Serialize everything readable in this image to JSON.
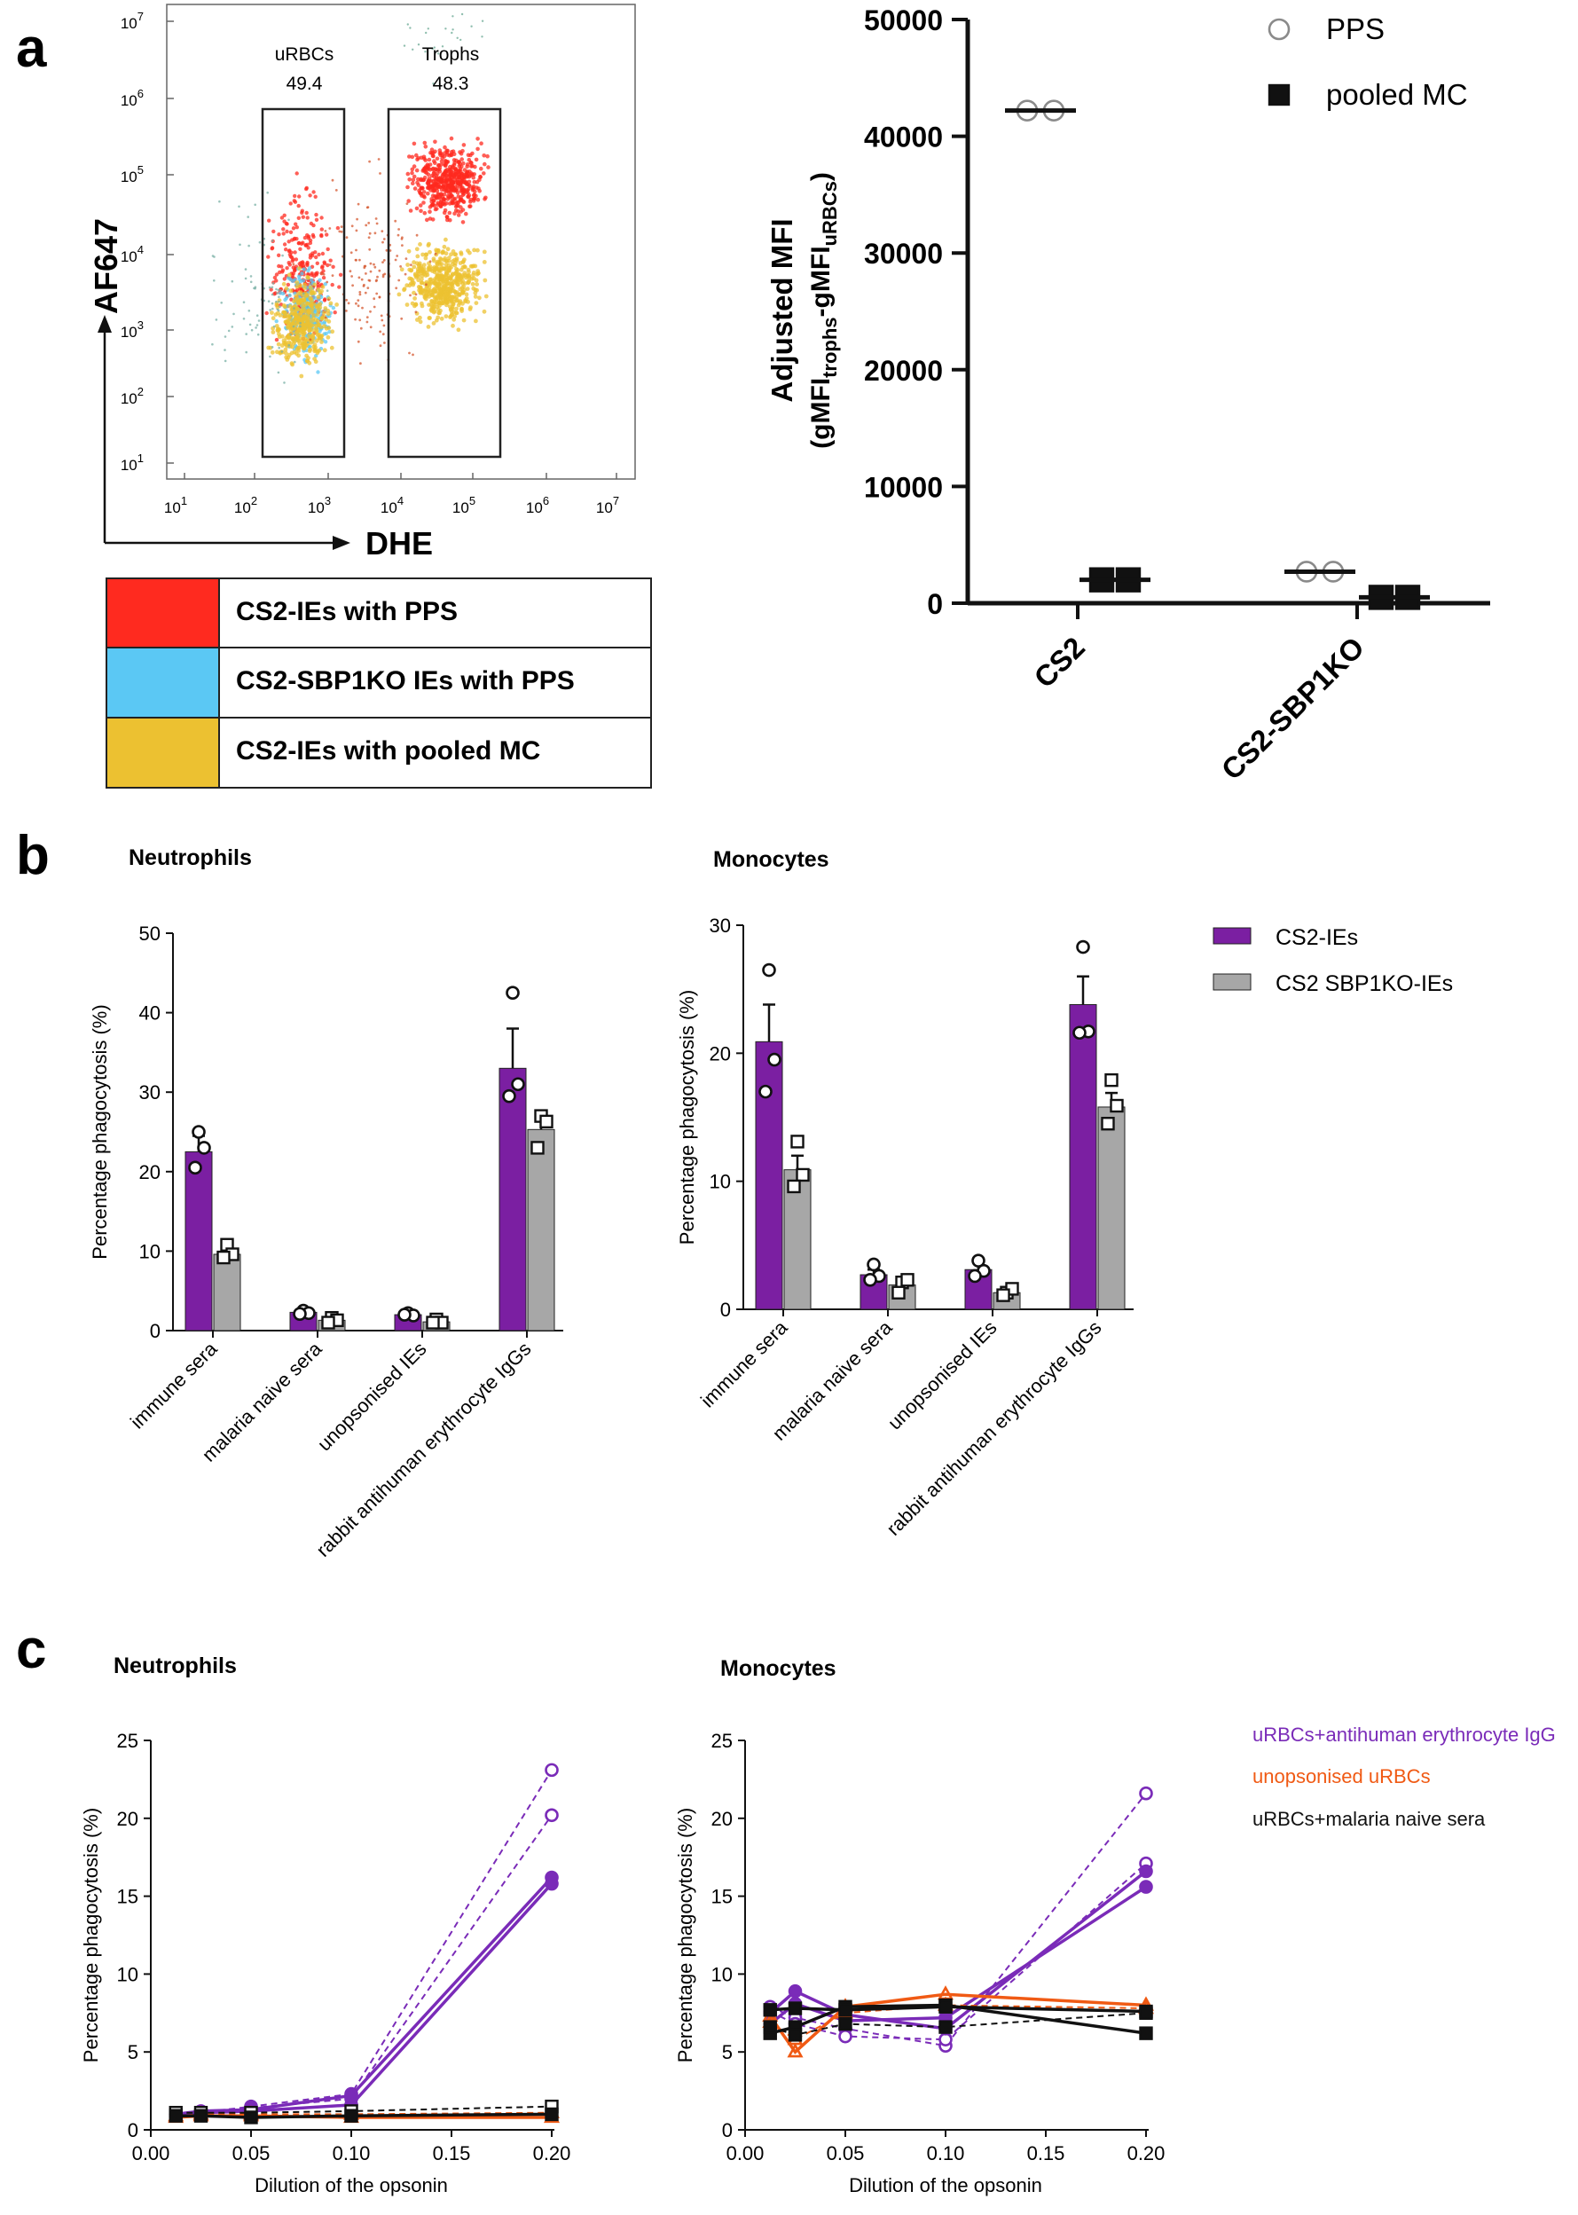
{
  "panel_labels": {
    "a": "a",
    "b": "b",
    "c": "c"
  },
  "flow": {
    "yaxis_label": "AF647",
    "xaxis_label": "DHE",
    "y_ticks": [
      {
        "base": "10",
        "exp": "1"
      },
      {
        "base": "10",
        "exp": "2"
      },
      {
        "base": "10",
        "exp": "3"
      },
      {
        "base": "10",
        "exp": "4"
      },
      {
        "base": "10",
        "exp": "5"
      },
      {
        "base": "10",
        "exp": "6"
      },
      {
        "base": "10",
        "exp": "7"
      }
    ],
    "x_ticks": [
      {
        "base": "10",
        "exp": "1"
      },
      {
        "base": "10",
        "exp": "2"
      },
      {
        "base": "10",
        "exp": "3"
      },
      {
        "base": "10",
        "exp": "4"
      },
      {
        "base": "10",
        "exp": "5"
      },
      {
        "base": "10",
        "exp": "6"
      },
      {
        "base": "10",
        "exp": "7"
      }
    ],
    "gates": [
      {
        "name": "uRBCs",
        "value": "49.4"
      },
      {
        "name": "Trophs",
        "value": "48.3"
      }
    ],
    "legend": [
      {
        "label": "CS2-IEs with PPS",
        "color": "#ff2a1f"
      },
      {
        "label": "CS2-SBP1KO IEs with PPS",
        "color": "#5bc8f4"
      },
      {
        "label": "CS2-IEs with pooled MC",
        "color": "#ecc131"
      }
    ]
  },
  "chart_data": [
    {
      "id": "a-mfi",
      "type": "scatter",
      "title": "",
      "ylabel": "Adjusted MFI",
      "ylabel2_parts": [
        "(gMFI",
        "trophs",
        "-gMFI",
        "uRBCs",
        ")"
      ],
      "ylim": [
        0,
        50000
      ],
      "yticks": [
        0,
        10000,
        20000,
        30000,
        40000,
        50000
      ],
      "categories": [
        "CS2",
        "CS2-SBP1KO"
      ],
      "series": [
        {
          "name": "PPS",
          "marker": "open-circle",
          "points": [
            [
              42200,
              42200
            ],
            [
              2700,
              2700
            ]
          ],
          "means": [
            42200,
            2700
          ]
        },
        {
          "name": "pooled MC",
          "marker": "filled-square",
          "points": [
            [
              2000,
              2000
            ],
            [
              500,
              500
            ]
          ],
          "means": [
            2000,
            500
          ]
        }
      ]
    },
    {
      "id": "b-neutrophils",
      "type": "bar",
      "title": "Neutrophils",
      "ylabel": "Percentage phagocytosis (%)",
      "ylim": [
        0,
        50
      ],
      "yticks": [
        0,
        10,
        20,
        30,
        40,
        50
      ],
      "categories": [
        "immune sera",
        "malaria naive sera",
        "unopsonised IEs",
        "rabbit antihuman erythrocyte IgGs"
      ],
      "series": [
        {
          "name": "CS2-IEs",
          "color": "#7b1fa2",
          "marker": "circle",
          "values": [
            22.5,
            2.3,
            2.0,
            33.0
          ],
          "sem": [
            2.0,
            0.3,
            0.3,
            5.0
          ],
          "points": [
            [
              25.0,
              23.0,
              20.5
            ],
            [
              2.5,
              2.2,
              2.1
            ],
            [
              2.2,
              1.9,
              2.0
            ],
            [
              42.5,
              31.0,
              29.5
            ]
          ]
        },
        {
          "name": "CS2 SBP1KO-IEs",
          "color": "#a7a7a7",
          "marker": "square",
          "values": [
            9.6,
            1.3,
            1.1,
            25.3
          ],
          "sem": [
            0.8,
            0.3,
            0.3,
            1.5
          ],
          "points": [
            [
              10.8,
              9.6,
              9.2
            ],
            [
              1.6,
              1.3,
              1.0
            ],
            [
              1.4,
              1.0,
              1.0
            ],
            [
              27.0,
              26.3,
              23.0
            ]
          ]
        }
      ]
    },
    {
      "id": "b-monocytes",
      "type": "bar",
      "title": "Monocytes",
      "ylabel": "Percentage phagocytosis (%)",
      "ylim": [
        0,
        30
      ],
      "yticks": [
        0,
        10,
        20,
        30
      ],
      "categories": [
        "immune sera",
        "malaria naive sera",
        "unopsonised IEs",
        "rabbit antihuman erythrocyte IgGs"
      ],
      "series": [
        {
          "name": "CS2-IEs",
          "color": "#7b1fa2",
          "marker": "circle",
          "values": [
            20.9,
            2.7,
            3.1,
            23.8
          ],
          "sem": [
            2.9,
            0.4,
            0.6,
            2.2
          ],
          "points": [
            [
              26.5,
              19.5,
              17.0
            ],
            [
              3.5,
              2.6,
              2.3
            ],
            [
              3.8,
              3.0,
              2.6
            ],
            [
              28.3,
              21.7,
              21.6
            ]
          ]
        },
        {
          "name": "CS2 SBP1KO-IEs",
          "color": "#a7a7a7",
          "marker": "square",
          "values": [
            10.9,
            1.9,
            1.3,
            15.8
          ],
          "sem": [
            1.1,
            0.5,
            0.4,
            1.1
          ],
          "points": [
            [
              13.1,
              10.5,
              9.6
            ],
            [
              2.1,
              2.3,
              1.3
            ],
            [
              1.3,
              1.6,
              1.1
            ],
            [
              17.9,
              15.9,
              14.5
            ]
          ]
        }
      ]
    },
    {
      "id": "c-neutrophils",
      "type": "line",
      "title": "Neutrophils",
      "xlabel": "Dilution of the opsonin",
      "ylabel": "Percentage phagocytosis (%)",
      "xlim": [
        0,
        0.2
      ],
      "ylim": [
        0,
        25
      ],
      "xticks": [
        "0.00",
        "0.05",
        "0.10",
        "0.15",
        "0.20"
      ],
      "yticks": [
        0,
        5,
        10,
        15,
        20,
        25
      ],
      "x": [
        0.0125,
        0.025,
        0.05,
        0.1,
        0.2
      ],
      "series": [
        {
          "name": "uRBCs+antihuman erythrocyte IgG",
          "color": "#7a2bb8",
          "replicates": [
            {
              "style": "dashed",
              "marker": "open-circle",
              "values": [
                1.0,
                1.1,
                1.5,
                2.3,
                23.1
              ]
            },
            {
              "style": "dashed",
              "marker": "open-circle",
              "values": [
                0.9,
                1.0,
                1.4,
                2.0,
                20.2
              ]
            },
            {
              "style": "solid",
              "marker": "circle",
              "values": [
                1.0,
                1.2,
                1.3,
                2.2,
                16.2
              ]
            },
            {
              "style": "solid",
              "marker": "circle",
              "values": [
                0.9,
                1.1,
                1.2,
                1.6,
                15.8
              ]
            }
          ]
        },
        {
          "name": "unopsonised uRBCs",
          "color": "#f05a14",
          "replicates": [
            {
              "style": "dashed",
              "marker": "triangle",
              "values": [
                0.9,
                1.0,
                1.0,
                1.0,
                1.1
              ]
            },
            {
              "style": "solid",
              "marker": "triangle",
              "values": [
                0.8,
                0.9,
                0.9,
                0.8,
                0.8
              ]
            }
          ]
        },
        {
          "name": "uRBCs+malaria naive sera",
          "color": "#111111",
          "replicates": [
            {
              "style": "dashed",
              "marker": "open-square",
              "values": [
                1.1,
                1.1,
                1.1,
                1.2,
                1.5
              ]
            },
            {
              "style": "solid",
              "marker": "square",
              "values": [
                0.9,
                0.9,
                0.8,
                0.9,
                1.0
              ]
            }
          ]
        }
      ]
    },
    {
      "id": "c-monocytes",
      "type": "line",
      "title": "Monocytes",
      "xlabel": "Dilution of the opsonin",
      "ylabel": "Percentage phagocytosis (%)",
      "xlim": [
        0,
        0.2
      ],
      "ylim": [
        0,
        25
      ],
      "xticks": [
        "0.00",
        "0.05",
        "0.10",
        "0.15",
        "0.20"
      ],
      "yticks": [
        0,
        5,
        10,
        15,
        20,
        25
      ],
      "x": [
        0.0125,
        0.025,
        0.05,
        0.1,
        0.2
      ],
      "series": [
        {
          "name": "uRBCs+antihuman erythrocyte IgG",
          "color": "#7a2bb8",
          "replicates": [
            {
              "style": "dashed",
              "marker": "open-circle",
              "values": [
                7.9,
                7.2,
                6.5,
                5.4,
                21.6
              ]
            },
            {
              "style": "dashed",
              "marker": "open-circle",
              "values": [
                7.6,
                6.8,
                6.0,
                5.8,
                17.1
              ]
            },
            {
              "style": "solid",
              "marker": "circle",
              "values": [
                7.5,
                8.9,
                7.4,
                6.5,
                16.6
              ]
            },
            {
              "style": "solid",
              "marker": "circle",
              "values": [
                6.8,
                8.1,
                7.0,
                7.2,
                15.6
              ]
            }
          ]
        },
        {
          "name": "unopsonised uRBCs",
          "color": "#f05a14",
          "replicates": [
            {
              "style": "solid",
              "marker": "triangle",
              "values": [
                7.3,
                5.0,
                7.9,
                8.7,
                8.0
              ]
            },
            {
              "style": "dashed",
              "marker": "triangle",
              "values": [
                6.9,
                5.8,
                7.5,
                8.0,
                7.8
              ]
            }
          ]
        },
        {
          "name": "uRBCs+malaria naive sera",
          "color": "#111111",
          "replicates": [
            {
              "style": "solid",
              "marker": "square",
              "values": [
                6.2,
                6.6,
                7.9,
                8.0,
                6.2
              ]
            },
            {
              "style": "solid",
              "marker": "square",
              "values": [
                7.7,
                7.8,
                7.7,
                7.9,
                7.6
              ]
            },
            {
              "style": "dashed",
              "marker": "square",
              "values": [
                6.6,
                6.1,
                6.8,
                6.6,
                7.5
              ]
            }
          ]
        }
      ]
    }
  ]
}
